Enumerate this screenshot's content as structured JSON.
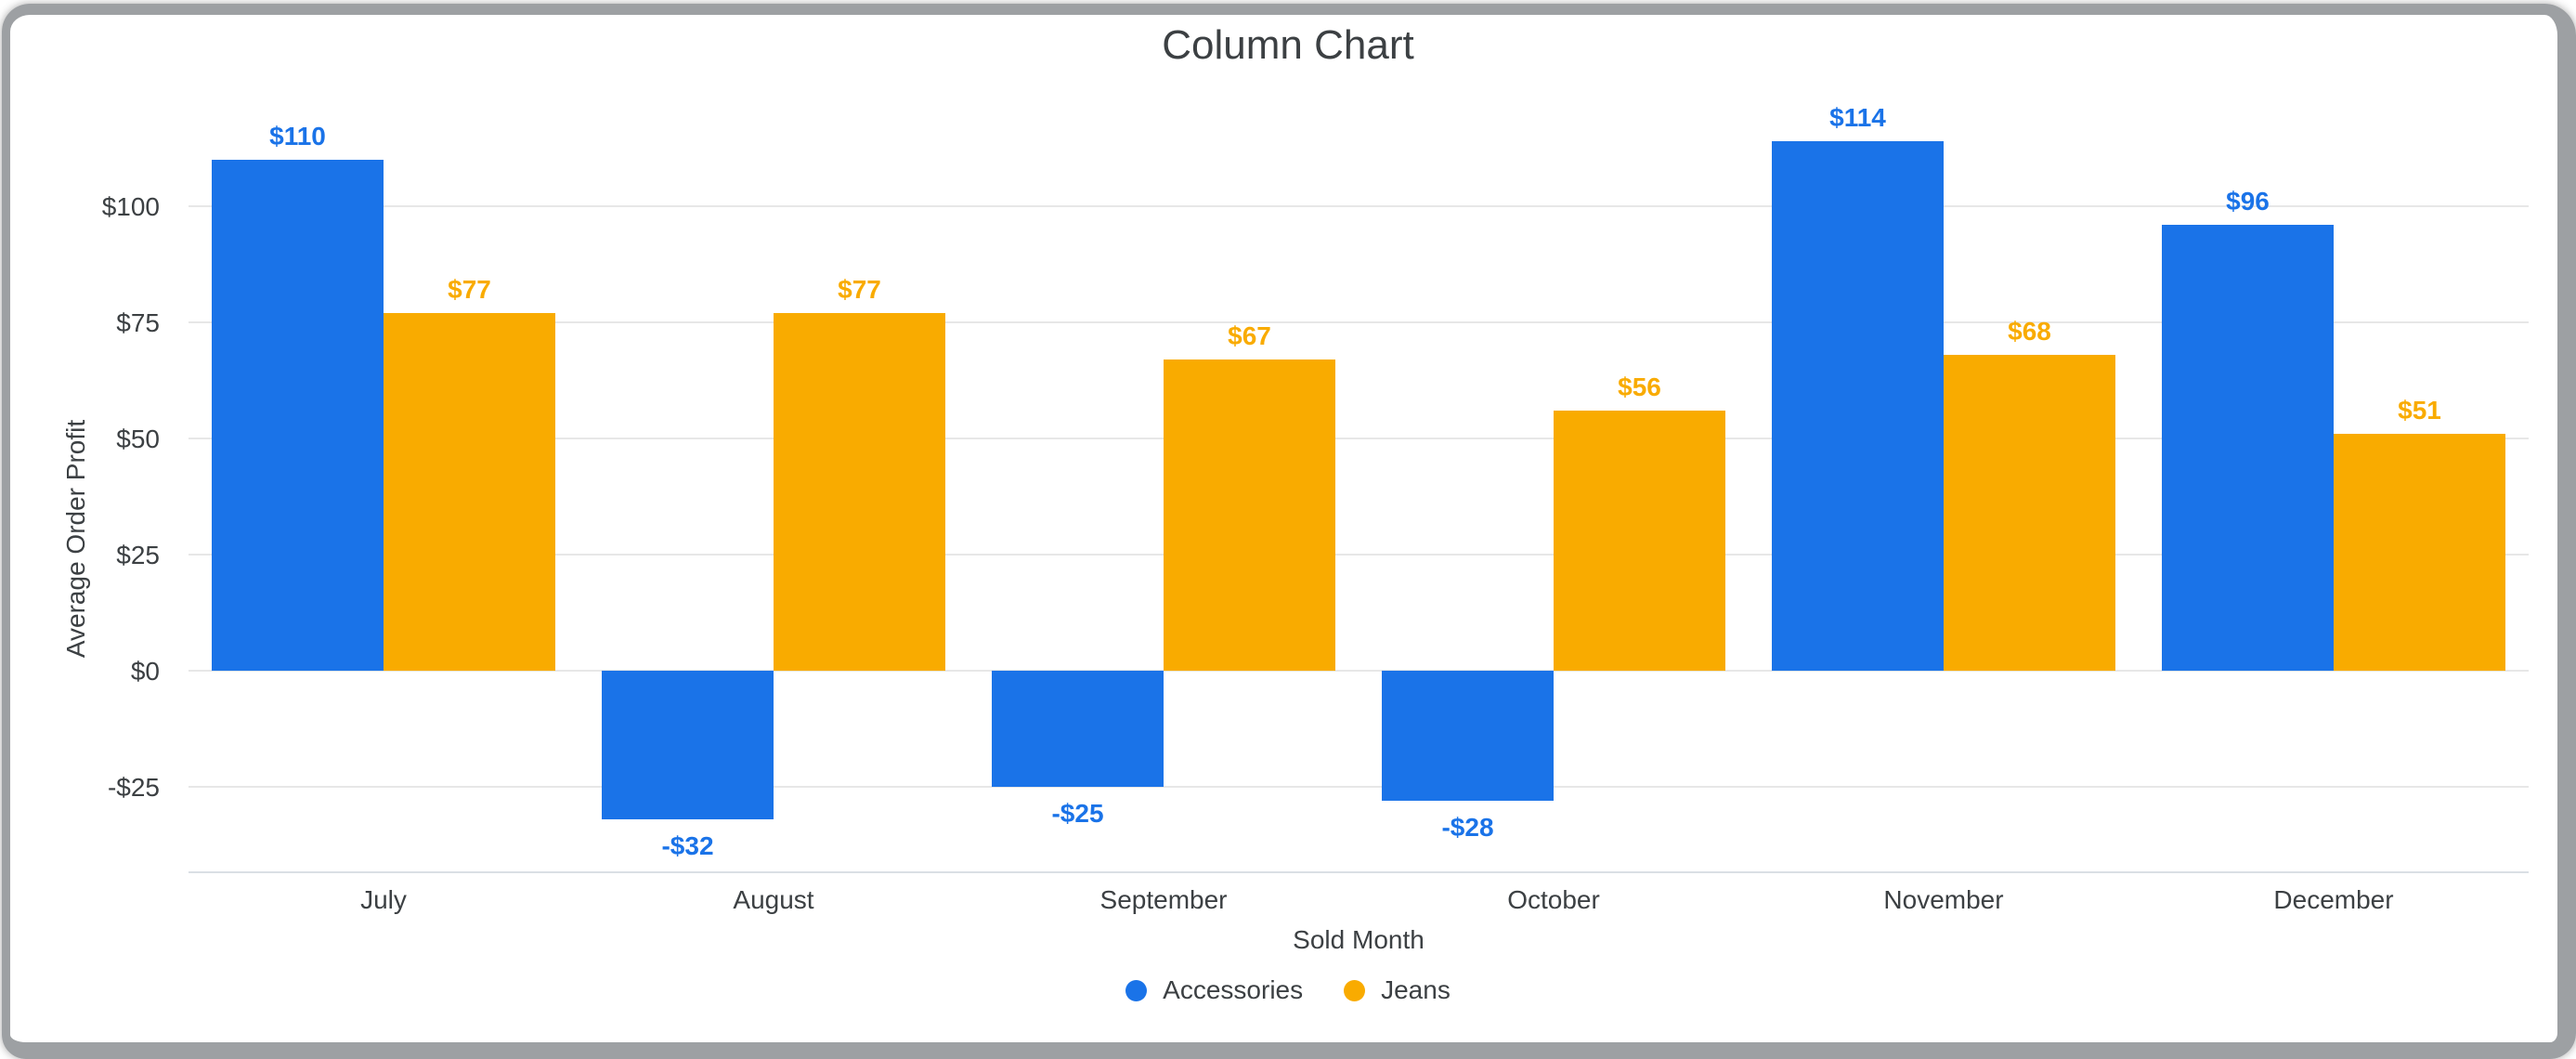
{
  "title": "Column Chart",
  "colors": {
    "accessories_blue": "#1a73e8",
    "jeans_orange": "#f9ab00",
    "text": "#3c4043",
    "gridline": "#e7e7e7",
    "axis_line": "#dadfe4",
    "frame_gray": "#9da0a3",
    "background": "#ffffff"
  },
  "chart_data": {
    "type": "bar",
    "title": "Column Chart",
    "xlabel": "Sold Month",
    "ylabel": "Average Order Profit",
    "categories": [
      "July",
      "August",
      "September",
      "October",
      "November",
      "December"
    ],
    "series": [
      {
        "name": "Accessories",
        "color": "#1a73e8",
        "values": [
          110,
          -32,
          -25,
          -28,
          114,
          96
        ],
        "labels": [
          "$110",
          "-$32",
          "-$25",
          "-$28",
          "$114",
          "$96"
        ]
      },
      {
        "name": "Jeans",
        "color": "#f9ab00",
        "values": [
          77,
          77,
          67,
          56,
          68,
          51
        ],
        "labels": [
          "$77",
          "$77",
          "$67",
          "$56",
          "$68",
          "$51"
        ]
      }
    ],
    "y_ticks": [
      {
        "value": -25,
        "label": "-$25"
      },
      {
        "value": 0,
        "label": "$0"
      },
      {
        "value": 25,
        "label": "$25"
      },
      {
        "value": 50,
        "label": "$50"
      },
      {
        "value": 75,
        "label": "$75"
      },
      {
        "value": 100,
        "label": "$100"
      }
    ],
    "ylim": [
      -44,
      121
    ],
    "grid": true,
    "legend_position": "bottom"
  }
}
